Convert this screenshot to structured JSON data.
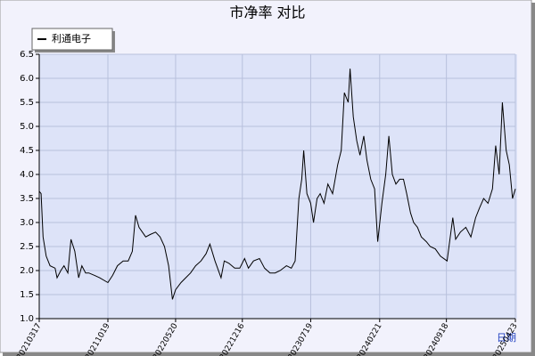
{
  "chart_data": {
    "type": "line",
    "title": "市净率  对比",
    "x_label": "日期",
    "x": [
      "20210317",
      "20210323",
      "20210329",
      "20210408",
      "20210420",
      "20210506",
      "20210512",
      "20210524",
      "20210603",
      "20210615",
      "20210625",
      "20210707",
      "20210719",
      "20210729",
      "20210810",
      "20210820",
      "20210907",
      "20210923",
      "20211019",
      "20211103",
      "20211118",
      "20211206",
      "20211222",
      "20220104",
      "20220114",
      "20220125",
      "20220215",
      "20220301",
      "20220318",
      "20220401",
      "20220415",
      "20220428",
      "20220510",
      "20220520",
      "20220606",
      "20220621",
      "20220706",
      "20220722",
      "20220808",
      "20220824",
      "20220905",
      "20220921",
      "20221010",
      "20221020",
      "20221104",
      "20221122",
      "20221208",
      "20221223",
      "20230104",
      "20230120",
      "20230208",
      "20230224",
      "20230313",
      "20230329",
      "20230414",
      "20230504",
      "20230519",
      "20230531",
      "20230612",
      "20230621",
      "20230627",
      "20230707",
      "20230719",
      "20230728",
      "20230808",
      "20230818",
      "20230830",
      "20230911",
      "20230926",
      "20231012",
      "20231023",
      "20231102",
      "20231114",
      "20231120",
      "20231130",
      "20231211",
      "20231221",
      "20240102",
      "20240112",
      "20240124",
      "20240205",
      "20240215",
      "20240228",
      "20240311",
      "20240321",
      "20240401",
      "20240412",
      "20240424",
      "20240506",
      "20240516",
      "20240528",
      "20240607",
      "20240619",
      "20240701",
      "20240717",
      "20240729",
      "20240814",
      "20240830",
      "20240920",
      "20241008",
      "20241017",
      "20241101",
      "20241118",
      "20241204",
      "20241219",
      "20241231",
      "20250113",
      "20250127",
      "20250210",
      "20250220",
      "20250303",
      "20250313",
      "20250325",
      "20250404",
      "20250414",
      "20250423"
    ],
    "series": [
      {
        "name": "利通电子",
        "color": "#000000",
        "values": [
          3.65,
          3.6,
          2.7,
          2.3,
          2.1,
          2.05,
          1.85,
          2.0,
          2.1,
          1.95,
          2.65,
          2.4,
          1.85,
          2.1,
          1.95,
          1.95,
          1.9,
          1.85,
          1.75,
          1.9,
          2.1,
          2.2,
          2.2,
          2.4,
          3.15,
          2.9,
          2.7,
          2.75,
          2.8,
          2.7,
          2.5,
          2.1,
          1.4,
          1.6,
          1.75,
          1.85,
          1.95,
          2.1,
          2.2,
          2.35,
          2.55,
          2.2,
          1.85,
          2.2,
          2.15,
          2.05,
          2.05,
          2.25,
          2.05,
          2.2,
          2.25,
          2.05,
          1.95,
          1.95,
          2.0,
          2.1,
          2.05,
          2.2,
          3.5,
          3.9,
          4.5,
          3.6,
          3.4,
          3.0,
          3.5,
          3.6,
          3.4,
          3.8,
          3.6,
          4.2,
          4.5,
          5.7,
          5.5,
          6.2,
          5.2,
          4.7,
          4.4,
          4.8,
          4.3,
          3.9,
          3.7,
          2.6,
          3.4,
          4.0,
          4.8,
          4.0,
          3.8,
          3.9,
          3.9,
          3.6,
          3.2,
          3.0,
          2.9,
          2.7,
          2.6,
          2.5,
          2.45,
          2.3,
          2.2,
          3.1,
          2.65,
          2.8,
          2.9,
          2.7,
          3.1,
          3.3,
          3.5,
          3.4,
          3.7,
          4.6,
          4.0,
          5.5,
          4.5,
          4.2,
          3.5,
          3.7
        ]
      }
    ],
    "xlim": [
      "20210317",
      "20250423"
    ],
    "xticks": [
      "20210317",
      "20211019",
      "20220520",
      "20221216",
      "20230719",
      "20240221",
      "20240918",
      "20250423"
    ],
    "ylim": [
      1,
      6.5
    ],
    "yticks": [
      {
        "value": 1,
        "label": "1.0"
      },
      1.5,
      {
        "value": 2,
        "label": "2.0"
      },
      2.5,
      {
        "value": 3,
        "label": "3.0"
      },
      3.5,
      {
        "value": 4,
        "label": "4.0"
      },
      4.5,
      {
        "value": 5,
        "label": "5.0"
      },
      5.5,
      {
        "value": 6,
        "label": "6.0"
      },
      6.5
    ],
    "grid": true,
    "legend": "top-left"
  }
}
